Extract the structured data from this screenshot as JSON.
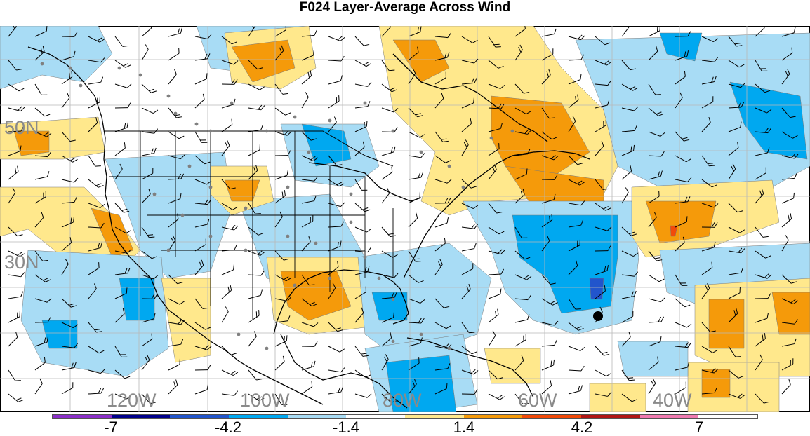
{
  "title": "F024 Layer-Average Across Wind",
  "lat_labels": [
    "50N",
    "30N"
  ],
  "lon_labels": [
    "120W",
    "100W",
    "80W",
    "60W",
    "40W"
  ],
  "colorbar": {
    "tick_labels": [
      "-7",
      "-4.2",
      "-1.4",
      "1.4",
      "4.2",
      "7"
    ],
    "colors": [
      "#8b2fc9",
      "#00008b",
      "#2255cc",
      "#00a8f0",
      "#a8dcf5",
      "#ffffff",
      "#ffe88c",
      "#f59a0a",
      "#f24a0a",
      "#b01515",
      "#f07ab0",
      "#ffffff"
    ]
  },
  "colors": {
    "land_line": "#000000",
    "grid": "#b0b0b0",
    "barb": "#000000",
    "station": "#808080",
    "marker": "#000000"
  }
}
